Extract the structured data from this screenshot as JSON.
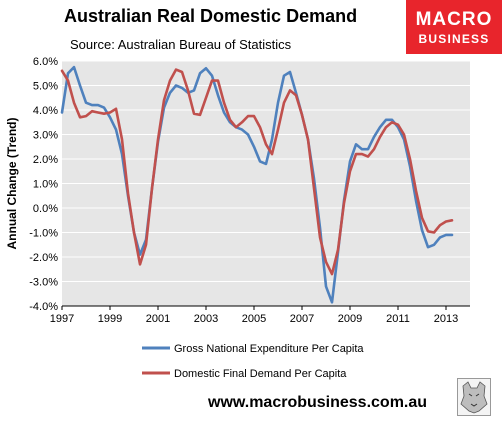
{
  "header": {
    "title": "Australian Real Domestic Demand",
    "subtitle": "Source: Australian Bureau of Statistics"
  },
  "logo": {
    "line1": "MACRO",
    "line2": "BUSINESS",
    "bg_color": "#e8252c"
  },
  "footer": {
    "url": "www.macrobusiness.com.au"
  },
  "chart_data": {
    "type": "line",
    "ylabel": "Annual Change (Trend)",
    "xlabel": "",
    "ylim": [
      -4.0,
      6.0
    ],
    "yticks": [
      "6.0%",
      "5.0%",
      "4.0%",
      "3.0%",
      "2.0%",
      "1.0%",
      "0.0%",
      "-1.0%",
      "-2.0%",
      "-3.0%",
      "-4.0%"
    ],
    "xlim": [
      1997,
      2014
    ],
    "xticks": [
      "1997",
      "1999",
      "2001",
      "2003",
      "2005",
      "2007",
      "2009",
      "2011",
      "2013"
    ],
    "background": "#e6e6e6",
    "grid": true,
    "legend_placement": "bottom",
    "series": [
      {
        "name": "Gross National Expenditure Per Capita",
        "color": "#4f81bd",
        "x": [
          1997.0,
          1997.25,
          1997.5,
          1997.75,
          1998.0,
          1998.25,
          1998.5,
          1998.75,
          1999.0,
          1999.25,
          1999.5,
          1999.75,
          2000.0,
          2000.25,
          2000.5,
          2000.75,
          2001.0,
          2001.25,
          2001.5,
          2001.75,
          2002.0,
          2002.25,
          2002.5,
          2002.75,
          2003.0,
          2003.25,
          2003.5,
          2003.75,
          2004.0,
          2004.25,
          2004.5,
          2004.75,
          2005.0,
          2005.25,
          2005.5,
          2005.75,
          2006.0,
          2006.25,
          2006.5,
          2006.75,
          2007.0,
          2007.25,
          2007.5,
          2007.75,
          2008.0,
          2008.25,
          2008.5,
          2008.75,
          2009.0,
          2009.25,
          2009.5,
          2009.75,
          2010.0,
          2010.25,
          2010.5,
          2010.75,
          2011.0,
          2011.25,
          2011.5,
          2011.75,
          2012.0,
          2012.25,
          2012.5,
          2012.75,
          2013.0,
          2013.25
        ],
        "values": [
          3.9,
          5.5,
          5.75,
          5.0,
          4.3,
          4.2,
          4.2,
          4.1,
          3.7,
          3.2,
          2.2,
          0.5,
          -1.0,
          -1.9,
          -1.3,
          0.8,
          2.7,
          4.1,
          4.7,
          5.0,
          4.9,
          4.7,
          4.8,
          5.5,
          5.7,
          5.4,
          4.6,
          3.9,
          3.5,
          3.3,
          3.2,
          3.0,
          2.5,
          1.9,
          1.8,
          2.8,
          4.3,
          5.4,
          5.55,
          4.7,
          3.8,
          2.8,
          1.2,
          -0.8,
          -3.2,
          -3.85,
          -1.8,
          0.3,
          1.9,
          2.6,
          2.4,
          2.4,
          2.9,
          3.3,
          3.6,
          3.6,
          3.3,
          2.8,
          1.7,
          0.3,
          -0.9,
          -1.6,
          -1.5,
          -1.2,
          -1.1,
          -1.1
        ],
        "end_x": 2013.25
      },
      {
        "name": "Domestic Final Demand Per Capita",
        "color": "#c0504d",
        "x": [
          1997.0,
          1997.25,
          1997.5,
          1997.75,
          1998.0,
          1998.25,
          1998.5,
          1998.75,
          1999.0,
          1999.25,
          1999.5,
          1999.75,
          2000.0,
          2000.25,
          2000.5,
          2000.75,
          2001.0,
          2001.25,
          2001.5,
          2001.75,
          2002.0,
          2002.25,
          2002.5,
          2002.75,
          2003.0,
          2003.25,
          2003.5,
          2003.75,
          2004.0,
          2004.25,
          2004.5,
          2004.75,
          2005.0,
          2005.25,
          2005.5,
          2005.75,
          2006.0,
          2006.25,
          2006.5,
          2006.75,
          2007.0,
          2007.25,
          2007.5,
          2007.75,
          2008.0,
          2008.25,
          2008.5,
          2008.75,
          2009.0,
          2009.25,
          2009.5,
          2009.75,
          2010.0,
          2010.25,
          2010.5,
          2010.75,
          2011.0,
          2011.25,
          2011.5,
          2011.75,
          2012.0,
          2012.25,
          2012.5,
          2012.75,
          2013.0,
          2013.25
        ],
        "values": [
          5.6,
          5.2,
          4.3,
          3.7,
          3.75,
          3.95,
          3.9,
          3.85,
          3.9,
          4.05,
          2.8,
          0.6,
          -1.0,
          -2.3,
          -1.5,
          0.8,
          2.8,
          4.4,
          5.2,
          5.65,
          5.55,
          4.8,
          3.85,
          3.8,
          4.5,
          5.2,
          5.2,
          4.3,
          3.6,
          3.3,
          3.5,
          3.75,
          3.75,
          3.3,
          2.6,
          2.2,
          3.2,
          4.3,
          4.8,
          4.6,
          3.8,
          2.8,
          0.8,
          -1.2,
          -2.2,
          -2.7,
          -1.7,
          0.2,
          1.5,
          2.2,
          2.2,
          2.1,
          2.4,
          2.9,
          3.3,
          3.5,
          3.4,
          3.0,
          2.0,
          0.7,
          -0.4,
          -0.95,
          -1.0,
          -0.7,
          -0.55,
          -0.5
        ],
        "end_x": 2013.25
      }
    ]
  }
}
